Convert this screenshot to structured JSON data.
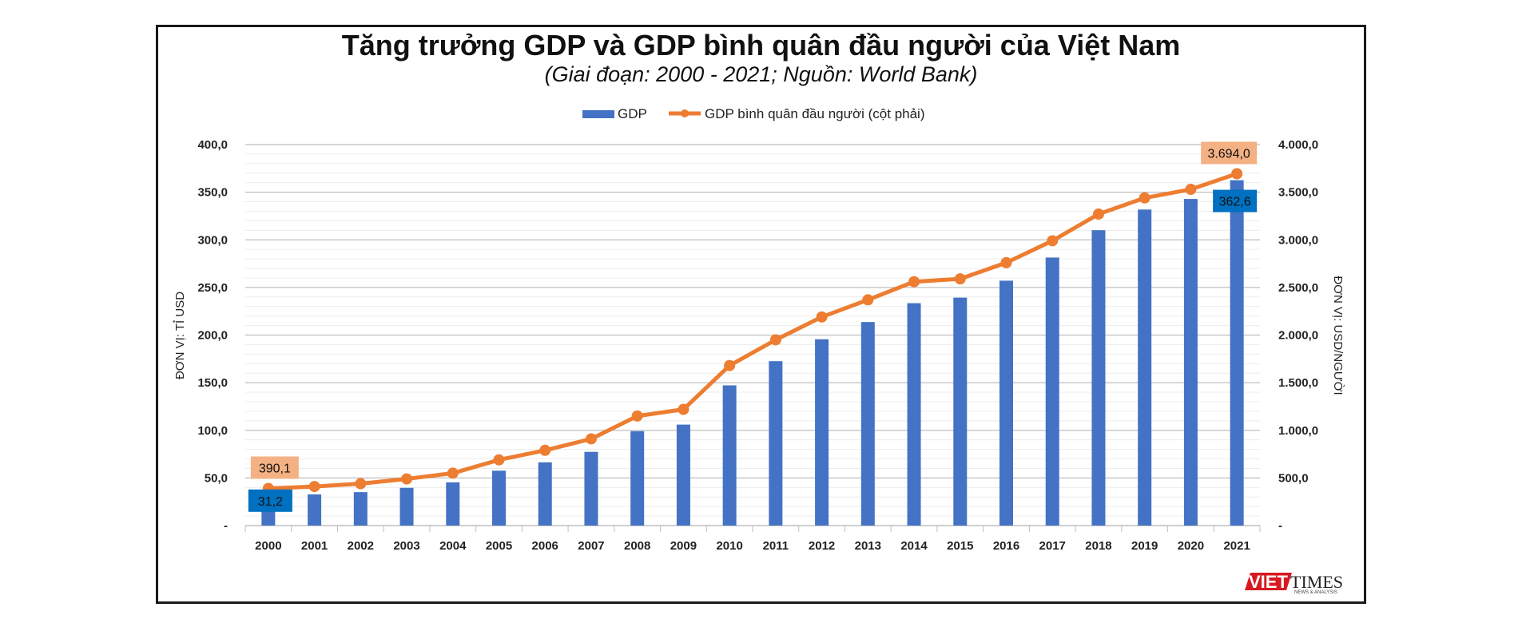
{
  "title": "Tăng trưởng GDP và GDP bình quân đầu người của Việt Nam",
  "subtitle": "(Giai đoạn: 2000 - 2021; Nguồn: World Bank)",
  "colors": {
    "bar": "#4472C4",
    "line": "#ED7D31",
    "bar_label_bg": "#0070C0",
    "line_label_bg": "#F4B183"
  },
  "logo": {
    "part1": "VIET",
    "part2": "TIMES",
    "tagline": "NEWS & ANALYSIS"
  },
  "chart_data": {
    "type": "bar",
    "categories": [
      "2000",
      "2001",
      "2002",
      "2003",
      "2004",
      "2005",
      "2006",
      "2007",
      "2008",
      "2009",
      "2010",
      "2011",
      "2012",
      "2013",
      "2014",
      "2015",
      "2016",
      "2017",
      "2018",
      "2019",
      "2020",
      "2021"
    ],
    "series": [
      {
        "name": "GDP",
        "type": "bar",
        "axis": "left",
        "values": [
          31.2,
          32.7,
          35.1,
          39.6,
          45.4,
          57.6,
          66.4,
          77.4,
          99.1,
          106.0,
          147.2,
          172.6,
          195.6,
          213.7,
          233.5,
          239.3,
          257.1,
          281.4,
          310.1,
          331.8,
          342.9,
          362.6
        ]
      },
      {
        "name": "GDP bình quân đầu người (cột phải)",
        "type": "line",
        "axis": "right",
        "values": [
          390.1,
          410.0,
          440.0,
          490.0,
          550.0,
          690.0,
          790.0,
          910.0,
          1150.0,
          1220.0,
          1680.0,
          1950.0,
          2190.0,
          2370.0,
          2560.0,
          2590.0,
          2760.0,
          2990.0,
          3270.0,
          3440.0,
          3530.0,
          3694.0
        ]
      }
    ],
    "y_left": {
      "label": "ĐƠN VỊ: TỈ USD",
      "range": [
        0,
        400
      ],
      "ticks": [
        "-",
        "50,0",
        "100,0",
        "150,0",
        "200,0",
        "250,0",
        "300,0",
        "350,0",
        "400,0"
      ]
    },
    "y_right": {
      "label": "ĐƠN VỊ: USD/NGƯỜI",
      "range": [
        0,
        4000
      ],
      "ticks": [
        "-",
        "500,0",
        "1.000,0",
        "1.500,0",
        "2.000,0",
        "2.500,0",
        "3.000,0",
        "3.500,0",
        "4.000,0"
      ]
    },
    "legend": {
      "position": "top",
      "items": [
        "GDP",
        "GDP bình quân đầu người (cột phải)"
      ]
    },
    "data_labels": [
      {
        "series": "GDP",
        "category": "2000",
        "text": "31,2"
      },
      {
        "series": "GDP",
        "category": "2021",
        "text": "362,6"
      },
      {
        "series": "GDP bình quân đầu người (cột phải)",
        "category": "2000",
        "text": "390,1"
      },
      {
        "series": "GDP bình quân đầu người (cột phải)",
        "category": "2021",
        "text": "3.694,0"
      }
    ]
  }
}
